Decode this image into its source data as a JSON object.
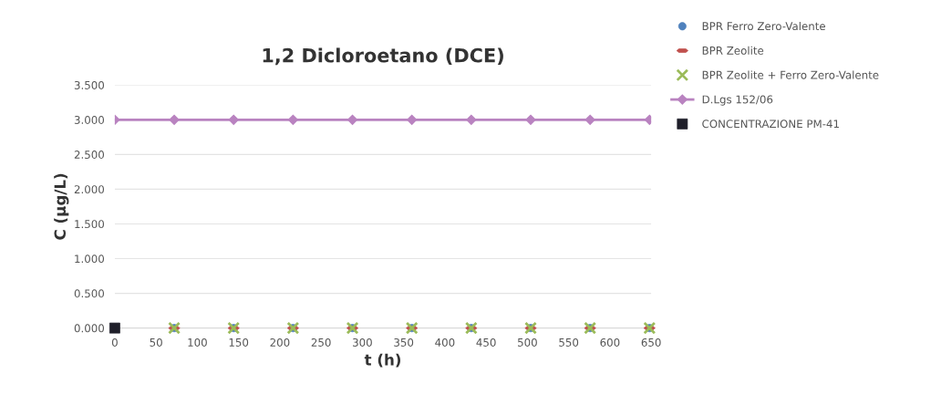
{
  "chart_data": {
    "type": "scatter",
    "title": "1,2 Dicloroetano (DCE)",
    "xlabel": "t (h)",
    "ylabel": "C (µg/L)",
    "xlim": [
      0,
      650
    ],
    "xticks": [
      0,
      50,
      100,
      150,
      200,
      250,
      300,
      350,
      400,
      450,
      500,
      550,
      600,
      650
    ],
    "ylim": [
      0,
      3.5
    ],
    "yticks": [
      {
        "value": 0,
        "label": "0.000"
      },
      {
        "value": 0.5,
        "label": "0.500"
      },
      {
        "value": 1,
        "label": "1.000"
      },
      {
        "value": 1.5,
        "label": "1.500"
      },
      {
        "value": 2,
        "label": "2.000"
      },
      {
        "value": 2.5,
        "label": "2.500"
      },
      {
        "value": 3,
        "label": "3.000"
      },
      {
        "value": 3.5,
        "label": "3.500"
      }
    ],
    "grid": "y",
    "legend": "right",
    "series": [
      {
        "name": "BPR Ferro Zero-Valente",
        "marker": "circle",
        "color": "#4f81bd",
        "x": [
          72,
          144,
          216,
          288,
          360,
          432,
          504,
          576,
          648
        ],
        "values": [
          0,
          0,
          0,
          0,
          0,
          0,
          0,
          0,
          0
        ]
      },
      {
        "name": "BPR Zeolite",
        "color": "#c0504d",
        "x": [
          72,
          144,
          216,
          288,
          360,
          432,
          504,
          576,
          648
        ],
        "values": [
          0,
          0,
          0,
          0,
          0,
          0,
          0,
          0,
          0
        ]
      },
      {
        "name": "BPR Zeolite + Ferro Zero-Valente",
        "marker": "cross",
        "color": "#9bbb59",
        "x": [
          72,
          144,
          216,
          288,
          360,
          432,
          504,
          576,
          648
        ],
        "values": [
          0,
          0,
          0,
          0,
          0,
          0,
          0,
          0,
          0
        ]
      },
      {
        "name": "D.Lgs 152/06",
        "type": "line",
        "marker": "diamond",
        "color": "#b983c0",
        "x": [
          0,
          72,
          144,
          216,
          288,
          360,
          432,
          504,
          576,
          648
        ],
        "values": [
          3,
          3,
          3,
          3,
          3,
          3,
          3,
          3,
          3,
          3
        ]
      },
      {
        "name": "CONCENTRAZIONE PM-41",
        "marker": "square",
        "color": "#1f1f2a",
        "x": [
          0
        ],
        "values": [
          0
        ]
      }
    ]
  }
}
